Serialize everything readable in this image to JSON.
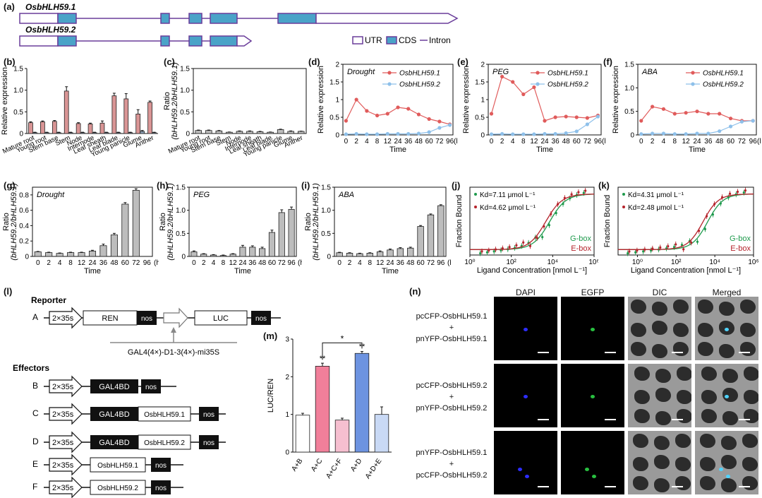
{
  "panel_labels": {
    "a": "(a)",
    "b": "(b)",
    "c": "(c)",
    "d": "(d)",
    "e": "(e)",
    "f": "(f)",
    "g": "(g)",
    "h": "(h)",
    "i": "(i)",
    "j": "(j)",
    "k": "(k)",
    "l": "(l)",
    "m": "(m)",
    "n": "(n)"
  },
  "gene_structure": {
    "gene1": "OsbHLH59.1",
    "gene2": "OsbHLH59.2",
    "legend_utr": "UTR",
    "legend_cds": "CDS",
    "legend_intron": "Intron",
    "colors": {
      "utr": "#6a3d9a",
      "cds": "#4aa3c8"
    }
  },
  "chart_data": [
    {
      "id": "b",
      "type": "bar",
      "ylabel": "Relative expression",
      "ylim": [
        0,
        1.5
      ],
      "yticks": [
        0,
        0.5,
        1.0,
        1.5
      ],
      "categories": [
        "Mature root",
        "Young root",
        "Stem base",
        "Stem",
        "Node",
        "Internode",
        "Leaf sheath",
        "Leaf blade",
        "Young panicle",
        "Glume",
        "Anther"
      ],
      "series": [
        {
          "name": "OsbHLH59.1",
          "color": "#d99595",
          "values": [
            0.25,
            0.27,
            0.28,
            0.98,
            0.23,
            0.22,
            0.24,
            0.87,
            0.8,
            0.45,
            0.72
          ],
          "err": [
            0.02,
            0.02,
            0.02,
            0.1,
            0.02,
            0.02,
            0.05,
            0.06,
            0.12,
            0.1,
            0.03
          ]
        },
        {
          "name": "OsbHLH59.2",
          "color": "#8fa2b8",
          "values": [
            0.02,
            0.02,
            0.02,
            0.02,
            0.02,
            0.02,
            0.02,
            0.02,
            0.02,
            0.05,
            0.02
          ],
          "err": [
            0.01,
            0.01,
            0.01,
            0.01,
            0.01,
            0.01,
            0.01,
            0.01,
            0.01,
            0.02,
            0.01
          ]
        }
      ]
    },
    {
      "id": "c",
      "type": "bar",
      "ylabel": "Ratio",
      "ylabel2": "(bHLH59.2/bHLH59.1)",
      "ylim": [
        0,
        1.5
      ],
      "yticks": [
        0,
        0.5,
        1.0,
        1.5
      ],
      "categories": [
        "Mature root",
        "Young root",
        "Stem base",
        "Stem",
        "Node",
        "Internode",
        "Leaf sheath",
        "Leaf blade",
        "Young panicle",
        "Glume",
        "Anther"
      ],
      "series": [
        {
          "name": "ratio",
          "color": "#bdbdbd",
          "values": [
            0.07,
            0.07,
            0.06,
            0.03,
            0.05,
            0.05,
            0.04,
            0.03,
            0.09,
            0.05,
            0.05
          ],
          "err": [
            0.01,
            0.01,
            0.01,
            0.005,
            0.01,
            0.01,
            0.01,
            0.005,
            0.01,
            0.01,
            0.005
          ]
        }
      ]
    },
    {
      "id": "d",
      "type": "line",
      "title": "Drought",
      "ylabel": "Relative expression",
      "xlabel": "Time",
      "ylim": [
        0,
        2.0
      ],
      "yticks": [
        0,
        0.5,
        1.0,
        1.5,
        2.0
      ],
      "x": [
        "0",
        "2",
        "4",
        "8",
        "12",
        "24",
        "36",
        "48",
        "60",
        "72",
        "96"
      ],
      "xunit": "(h)",
      "series": [
        {
          "name": "OsbHLH59.1",
          "color": "#e05b5b",
          "values": [
            0.4,
            1.0,
            0.68,
            0.55,
            0.6,
            0.78,
            0.74,
            0.58,
            0.45,
            0.38,
            0.3
          ]
        },
        {
          "name": "OsbHLH59.2",
          "color": "#8ec0ea",
          "values": [
            0.02,
            0.03,
            0.02,
            0.02,
            0.03,
            0.03,
            0.03,
            0.04,
            0.08,
            0.2,
            0.28
          ]
        }
      ]
    },
    {
      "id": "e",
      "type": "line",
      "title": "PEG",
      "ylabel": "Relative expression",
      "xlabel": "Time",
      "ylim": [
        0,
        2.0
      ],
      "yticks": [
        0,
        0.5,
        1.0,
        1.5,
        2.0
      ],
      "x": [
        "0",
        "2",
        "4",
        "8",
        "12",
        "24",
        "36",
        "48",
        "60",
        "72",
        "96"
      ],
      "xunit": "(h)",
      "series": [
        {
          "name": "OsbHLH59.1",
          "color": "#e05b5b",
          "values": [
            0.6,
            1.65,
            1.5,
            1.15,
            1.35,
            0.4,
            0.5,
            0.52,
            0.5,
            0.48,
            0.55
          ]
        },
        {
          "name": "OsbHLH59.2",
          "color": "#8ec0ea",
          "values": [
            0.02,
            0.03,
            0.02,
            0.02,
            0.02,
            0.03,
            0.03,
            0.05,
            0.1,
            0.3,
            0.52
          ]
        }
      ]
    },
    {
      "id": "f",
      "type": "line",
      "title": "ABA",
      "ylabel": "Relative expression",
      "xlabel": "Time",
      "ylim": [
        0,
        1.5
      ],
      "yticks": [
        0,
        0.5,
        1.0,
        1.5
      ],
      "x": [
        "0",
        "2",
        "4",
        "8",
        "12",
        "24",
        "36",
        "48",
        "60",
        "72",
        "96"
      ],
      "xunit": "(h)",
      "series": [
        {
          "name": "OsbHLH59.1",
          "color": "#e05b5b",
          "values": [
            0.3,
            0.6,
            0.55,
            0.45,
            0.47,
            0.5,
            0.45,
            0.45,
            0.35,
            0.3,
            0.3
          ]
        },
        {
          "name": "OsbHLH59.2",
          "color": "#8ec0ea",
          "values": [
            0.02,
            0.03,
            0.03,
            0.02,
            0.02,
            0.03,
            0.03,
            0.08,
            0.18,
            0.28,
            0.3
          ]
        }
      ]
    },
    {
      "id": "g",
      "type": "bar",
      "title": "Drought",
      "ylabel": "Ratio",
      "ylabel2": "(bHLH59.2/bHLH59.1)",
      "xlabel": "Time",
      "ylim": [
        0,
        0.9
      ],
      "yticks": [
        0,
        0.2,
        0.4,
        0.6,
        0.8
      ],
      "categories": [
        "0",
        "2",
        "4",
        "8",
        "12",
        "24",
        "36",
        "48",
        "60",
        "72",
        "96"
      ],
      "xunit": "(h)",
      "series": [
        {
          "name": "ratio",
          "color": "#bdbdbd",
          "values": [
            0.06,
            0.05,
            0.04,
            0.05,
            0.05,
            0.07,
            0.14,
            0.28,
            0.68,
            0.86,
            0.0
          ],
          "err": [
            0.005,
            0.005,
            0.005,
            0.005,
            0.005,
            0.01,
            0.02,
            0.02,
            0.02,
            0.02,
            0
          ]
        }
      ]
    },
    {
      "id": "h",
      "type": "bar",
      "title": "PEG",
      "ylabel": "Ratio",
      "ylabel2": "(bHLH59.2/bHLH59.1)",
      "xlabel": "Time",
      "ylim": [
        0,
        1.5
      ],
      "yticks": [
        0,
        0.5,
        1.0,
        1.5
      ],
      "categories": [
        "0",
        "2",
        "4",
        "8",
        "12",
        "24",
        "36",
        "48",
        "60",
        "72",
        "96"
      ],
      "xunit": "(h)",
      "series": [
        {
          "name": "ratio",
          "color": "#bdbdbd",
          "values": [
            0.1,
            0.05,
            0.03,
            0.02,
            0.05,
            0.2,
            0.2,
            0.17,
            0.52,
            0.95,
            1.02
          ],
          "err": [
            0.02,
            0.01,
            0.01,
            0.01,
            0.01,
            0.04,
            0.03,
            0.03,
            0.05,
            0.06,
            0.05
          ]
        }
      ]
    },
    {
      "id": "i",
      "type": "bar",
      "title": "ABA",
      "ylabel": "Ratio",
      "ylabel2": "(bHLH59.2/bHLH59.1)",
      "xlabel": "Time",
      "ylim": [
        0,
        1.5
      ],
      "yticks": [
        0,
        0.5,
        1.0,
        1.5
      ],
      "categories": [
        "0",
        "2",
        "4",
        "8",
        "12",
        "24",
        "36",
        "48",
        "60",
        "72",
        "96"
      ],
      "xunit": "(h)",
      "series": [
        {
          "name": "ratio",
          "color": "#bdbdbd",
          "values": [
            0.08,
            0.07,
            0.06,
            0.07,
            0.1,
            0.14,
            0.17,
            0.18,
            0.65,
            0.9,
            1.1
          ],
          "err": [
            0.01,
            0.01,
            0.01,
            0.01,
            0.02,
            0.02,
            0.02,
            0.02,
            0.02,
            0.02,
            0.02
          ]
        }
      ]
    },
    {
      "id": "j",
      "type": "scatter",
      "ylabel": "Fraction Bound",
      "xlabel": "Ligand Concentration [nmol L⁻¹]",
      "xlog": true,
      "xlim": [
        0,
        6
      ],
      "xticks": [
        0,
        2,
        4,
        6
      ],
      "xticklabels": [
        "10⁰",
        "10²",
        "10⁴",
        "10⁶"
      ],
      "ann1": "Kd=7.11 μmol L⁻¹",
      "ann2": "Kd=4.62 μmol L⁻¹",
      "leg1": "G-box",
      "leg2": "E-box",
      "series": [
        {
          "name": "G-box",
          "color": "#1f9a4d",
          "kd_log": 3.85
        },
        {
          "name": "E-box",
          "color": "#b5232b",
          "kd_log": 3.66
        }
      ]
    },
    {
      "id": "k",
      "type": "scatter",
      "ylabel": "Fraction Bound",
      "xlabel": "Ligand Concentration [nmol L⁻¹]",
      "xlog": true,
      "xlim": [
        -1,
        6
      ],
      "xticks": [
        0,
        2,
        4,
        6
      ],
      "xticklabels": [
        "10⁰",
        "10²",
        "10⁴",
        "10⁶"
      ],
      "ann1": "Kd=4.31 μmol L⁻¹",
      "ann2": "Kd=2.48 μmol L⁻¹",
      "leg1": "G-box",
      "leg2": "E-box",
      "series": [
        {
          "name": "G-box",
          "color": "#1f9a4d",
          "kd_log": 3.63
        },
        {
          "name": "E-box",
          "color": "#b5232b",
          "kd_log": 3.39
        }
      ]
    },
    {
      "id": "m",
      "type": "bar",
      "ylabel": "LUC/REN",
      "ylim": [
        0,
        3
      ],
      "yticks": [
        0,
        1,
        2,
        3
      ],
      "categories": [
        "A+B",
        "A+C",
        "A+C+F",
        "A+D",
        "A+D+E"
      ],
      "series": [
        {
          "name": "LUC/REN",
          "colors": [
            "#ffffff",
            "#f17f9a",
            "#f6bfd0",
            "#6d93e0",
            "#c9d9f5"
          ],
          "values": [
            0.98,
            2.28,
            0.85,
            2.62,
            1.0
          ],
          "err": [
            0.05,
            0.08,
            0.05,
            0.05,
            0.2
          ]
        }
      ],
      "sig": [
        "**",
        "**"
      ],
      "sig_star": "*"
    }
  ],
  "constructs": {
    "reporter_title": "Reporter",
    "effectors_title": "Effectors",
    "promoter": "2×35s",
    "ren": "REN",
    "nos": "nos",
    "luc": "LUC",
    "gal_site": "GAL4(4×)-D1-3(4×)-mi35S",
    "gal4bd": "GAL4BD",
    "gene1": "OsbHLH59.1",
    "gene2": "OsbHLH59.2",
    "rows": [
      "A",
      "B",
      "C",
      "D",
      "E",
      "F"
    ]
  },
  "microscopy": {
    "headers": [
      "DAPI",
      "EGFP",
      "DIC",
      "Merged"
    ],
    "rows": [
      {
        "line1": "pcCFP-OsbHLH59.1",
        "plus": "+",
        "line2": "pnYFP-OsbHLH59.1"
      },
      {
        "line1": "pcCFP-OsbHLH59.2",
        "plus": "+",
        "line2": "pnYFP-OsbHLH59.2"
      },
      {
        "line1": "pnYFP-OsbHLH59.1",
        "plus": "+",
        "line2": "pcCFP-OsbHLH59.2"
      }
    ]
  }
}
